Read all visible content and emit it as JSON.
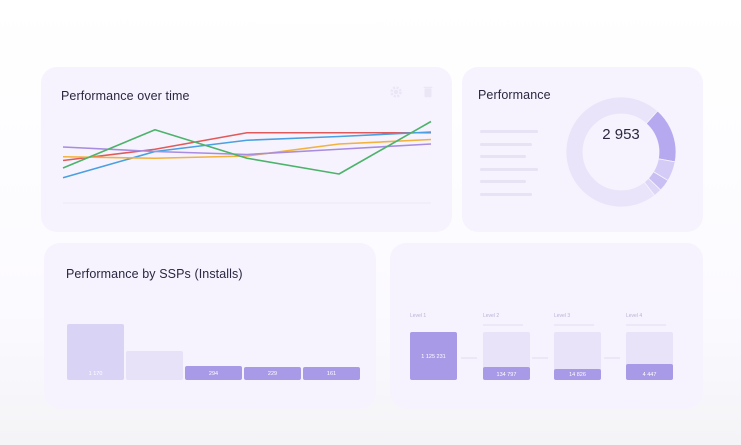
{
  "time_card": {
    "title": "Performance over time",
    "icons": [
      "gear-icon",
      "trash-icon"
    ]
  },
  "chart_data": {
    "type": "line",
    "title": "Performance over time",
    "x": [
      "",
      "",
      "",
      "",
      ""
    ],
    "ylim": [
      0,
      100
    ],
    "grid": false,
    "series": [
      {
        "color": "#e05a5a",
        "values": [
          38,
          53,
          75,
          75,
          75
        ]
      },
      {
        "color": "#4aa0e0",
        "values": [
          15,
          50,
          65,
          70,
          76
        ]
      },
      {
        "color": "#f2b23e",
        "values": [
          43,
          41,
          44,
          60,
          66
        ]
      },
      {
        "color": "#a78ce0",
        "values": [
          56,
          50,
          46,
          53,
          60
        ]
      },
      {
        "color": "#4cb36a",
        "values": [
          28,
          79,
          41,
          20,
          90
        ]
      }
    ]
  },
  "performance_card": {
    "title": "Performance",
    "total": "2 953",
    "legend_rows": 6,
    "slices": [
      {
        "value": 62,
        "color": "#e9e4f9"
      },
      {
        "value": 14,
        "color": "#b6a9ef"
      },
      {
        "value": 5,
        "color": "#d4cbf7"
      },
      {
        "value": 3,
        "color": "#c9bff3"
      },
      {
        "value": 2,
        "color": "#ddd6f7"
      }
    ]
  },
  "ssp_card": {
    "title": "Performance by SSPs (Installs)",
    "bars": [
      {
        "value": 1170,
        "label": "1 170",
        "color": "#d9d3f6"
      },
      {
        "value": 600,
        "label": "",
        "color": "#e7e2f7"
      },
      {
        "value": 294,
        "label": "294",
        "color": "#a99ae8"
      },
      {
        "value": 229,
        "label": "229",
        "color": "#a99ae8"
      },
      {
        "value": 161,
        "label": "161",
        "color": "#a99ae8"
      }
    ]
  },
  "funnel_card": {
    "stages": [
      {
        "label": "Level 1",
        "value": "1 125 231",
        "fill": 1.0
      },
      {
        "label": "Level 2",
        "value": "134 797",
        "fill": 0.27
      },
      {
        "label": "Level 3",
        "value": "14 826",
        "fill": 0.19
      },
      {
        "label": "Level 4",
        "value": "4 447",
        "fill": 0.34
      }
    ]
  }
}
